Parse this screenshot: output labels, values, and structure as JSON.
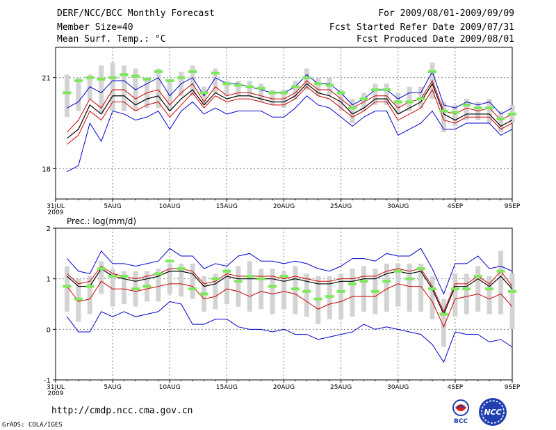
{
  "header": {
    "title": "DERF/NCC/BCC Monthly Forecast",
    "member_size": "Member Size=40",
    "variable": "Mean Surf. Temp.: °C",
    "period": "For 2009/08/01-2009/09/09",
    "fcst_started": "Fcst Started Refer Date 2009/07/31",
    "fcst_produced": "Fcst Produced Date 2009/08/01"
  },
  "footer": {
    "url": "http://cmdp.ncc.cma.gov.cn",
    "credit": "GrADS: COLA/IGES",
    "logo_left_text": "BCC",
    "logo_right_text": "NCC"
  },
  "colors": {
    "box": "#d3d3d3",
    "obs": "#7de85a",
    "envelope": "#0000cd",
    "spread": "#cc0000",
    "mean": "#000000",
    "grid": "#808080"
  },
  "chart_data": [
    {
      "type": "line",
      "title": "Mean Surf. Temp.: °C",
      "xlabel": "",
      "ylabel": "",
      "xlim": [
        0,
        40
      ],
      "ylim": [
        17.0,
        22.0
      ],
      "x_tick_positions": [
        0,
        5,
        10,
        15,
        20,
        25,
        30,
        35,
        40
      ],
      "x_tick_labels": [
        "31JUL",
        "5AUG",
        "10AUG",
        "15AUG",
        "20AUG",
        "25AUG",
        "30AUG",
        "4SEP",
        "9SEP"
      ],
      "x_sub_label": "2009",
      "y_tick_values": [
        18,
        21
      ],
      "y_tick_labels": [
        "18",
        "21"
      ],
      "grid": true,
      "x": [
        1,
        2,
        3,
        4,
        5,
        6,
        7,
        8,
        9,
        10,
        11,
        12,
        13,
        14,
        15,
        16,
        17,
        18,
        19,
        20,
        21,
        22,
        23,
        24,
        25,
        26,
        27,
        28,
        29,
        30,
        31,
        32,
        33,
        34,
        35,
        36,
        37,
        38,
        39,
        40
      ],
      "series": [
        {
          "name": "max",
          "values": [
            20.0,
            20.2,
            20.7,
            20.5,
            20.9,
            20.9,
            20.6,
            20.8,
            21.0,
            20.4,
            20.8,
            21.0,
            20.4,
            21.0,
            20.8,
            20.8,
            20.7,
            20.6,
            20.5,
            20.5,
            20.7,
            21.1,
            20.8,
            20.8,
            20.5,
            20.1,
            20.3,
            20.6,
            20.6,
            20.3,
            20.5,
            20.5,
            21.2,
            20.1,
            20.0,
            20.2,
            20.1,
            20.2,
            19.8,
            20.0
          ]
        },
        {
          "name": "upper",
          "values": [
            19.2,
            19.6,
            20.3,
            20.0,
            20.6,
            20.6,
            20.3,
            20.5,
            20.6,
            20.1,
            20.5,
            20.8,
            20.2,
            20.7,
            20.4,
            20.5,
            20.5,
            20.4,
            20.3,
            20.3,
            20.5,
            20.9,
            20.6,
            20.6,
            20.3,
            20.0,
            20.2,
            20.4,
            20.4,
            20.0,
            20.2,
            20.3,
            20.9,
            19.9,
            19.8,
            20.0,
            19.9,
            20.0,
            19.6,
            19.8
          ]
        },
        {
          "name": "mean",
          "values": [
            19.0,
            19.3,
            20.1,
            19.8,
            20.4,
            20.4,
            20.1,
            20.3,
            20.4,
            19.9,
            20.3,
            20.6,
            20.1,
            20.5,
            20.3,
            20.4,
            20.4,
            20.3,
            20.2,
            20.2,
            20.4,
            20.8,
            20.5,
            20.4,
            20.2,
            19.8,
            20.0,
            20.3,
            20.3,
            19.8,
            20.0,
            20.2,
            20.8,
            19.8,
            19.6,
            19.8,
            19.8,
            19.8,
            19.4,
            19.6
          ]
        },
        {
          "name": "lower",
          "values": [
            18.8,
            19.1,
            19.9,
            19.6,
            20.2,
            20.2,
            19.9,
            20.1,
            20.2,
            19.7,
            20.1,
            20.5,
            20.0,
            20.4,
            20.2,
            20.3,
            20.3,
            20.2,
            20.1,
            20.1,
            20.3,
            20.7,
            20.4,
            20.3,
            20.0,
            19.7,
            19.9,
            20.2,
            20.2,
            19.6,
            19.8,
            20.0,
            20.6,
            19.6,
            19.5,
            19.7,
            19.7,
            19.7,
            19.3,
            19.5
          ]
        },
        {
          "name": "min",
          "values": [
            17.9,
            18.1,
            19.5,
            18.9,
            19.9,
            19.8,
            19.6,
            19.7,
            19.9,
            19.3,
            19.9,
            20.2,
            19.8,
            20.0,
            19.8,
            19.9,
            19.9,
            19.9,
            19.7,
            19.7,
            20.0,
            20.4,
            20.1,
            20.0,
            19.7,
            19.4,
            19.7,
            19.9,
            19.9,
            19.1,
            19.3,
            19.5,
            19.9,
            19.3,
            19.3,
            19.5,
            19.5,
            19.5,
            19.1,
            19.3
          ]
        },
        {
          "name": "box_high",
          "values": [
            21.1,
            21.0,
            21.1,
            21.4,
            21.5,
            21.4,
            21.3,
            21.0,
            21.3,
            20.9,
            21.2,
            21.4,
            20.7,
            21.3,
            20.9,
            20.9,
            20.9,
            20.8,
            20.6,
            20.6,
            20.9,
            21.3,
            21.0,
            21.0,
            20.6,
            20.3,
            20.5,
            20.8,
            20.8,
            20.5,
            20.7,
            20.7,
            21.5,
            20.2,
            20.1,
            20.3,
            20.2,
            20.3,
            19.9,
            20.1
          ]
        },
        {
          "name": "box_low",
          "values": [
            19.7,
            19.9,
            20.3,
            19.8,
            19.9,
            19.9,
            19.9,
            20.0,
            20.0,
            19.9,
            20.4,
            20.4,
            20.1,
            20.5,
            20.4,
            20.4,
            20.4,
            20.2,
            20.1,
            20.0,
            20.3,
            20.6,
            20.4,
            20.4,
            19.9,
            19.5,
            19.9,
            20.1,
            20.1,
            19.8,
            19.9,
            20.0,
            20.3,
            19.2,
            19.4,
            19.6,
            19.6,
            19.5,
            19.2,
            19.5
          ]
        },
        {
          "name": "observation",
          "values": [
            20.5,
            20.9,
            21.0,
            20.95,
            21.0,
            21.1,
            21.05,
            20.95,
            21.2,
            20.9,
            21.0,
            21.2,
            20.5,
            21.15,
            20.8,
            20.75,
            20.7,
            20.65,
            20.5,
            20.5,
            20.7,
            21.0,
            20.8,
            20.75,
            20.5,
            20.0,
            20.3,
            20.6,
            20.6,
            20.2,
            20.2,
            20.3,
            21.2,
            19.9,
            19.85,
            20.1,
            20.0,
            20.0,
            19.65,
            19.8
          ]
        }
      ]
    },
    {
      "type": "line",
      "title": "Prec.: log(mm/d)",
      "xlabel": "",
      "ylabel": "",
      "xlim": [
        0,
        40
      ],
      "ylim": [
        -1,
        2
      ],
      "x_tick_positions": [
        0,
        5,
        10,
        15,
        20,
        25,
        30,
        35,
        40
      ],
      "x_tick_labels": [
        "31JUL",
        "5AUG",
        "10AUG",
        "15AUG",
        "20AUG",
        "25AUG",
        "30AUG",
        "4SEP",
        "9SEP"
      ],
      "x_sub_label": "2009",
      "y_tick_values": [
        -1,
        0,
        1,
        2
      ],
      "y_tick_labels": [
        "-1",
        "0",
        "1",
        "2"
      ],
      "grid": true,
      "x": [
        1,
        2,
        3,
        4,
        5,
        6,
        7,
        8,
        9,
        10,
        11,
        12,
        13,
        14,
        15,
        16,
        17,
        18,
        19,
        20,
        21,
        22,
        23,
        24,
        25,
        26,
        27,
        28,
        29,
        30,
        31,
        32,
        33,
        34,
        35,
        36,
        37,
        38,
        39,
        40
      ],
      "series": [
        {
          "name": "max",
          "values": [
            1.4,
            1.15,
            1.1,
            1.55,
            1.3,
            1.3,
            1.25,
            1.3,
            1.35,
            1.6,
            1.45,
            1.45,
            1.2,
            1.3,
            1.25,
            1.45,
            1.5,
            1.35,
            1.35,
            1.3,
            1.35,
            1.3,
            1.2,
            1.15,
            1.25,
            1.4,
            1.4,
            1.35,
            1.5,
            1.45,
            1.45,
            1.6,
            1.2,
            0.7,
            1.3,
            1.3,
            1.45,
            1.2,
            1.25,
            1.15
          ]
        },
        {
          "name": "upper",
          "values": [
            1.1,
            0.9,
            0.95,
            1.25,
            1.1,
            1.05,
            1.0,
            1.05,
            1.1,
            1.2,
            1.2,
            1.15,
            0.9,
            0.95,
            1.1,
            1.05,
            1.05,
            1.05,
            1.05,
            1.0,
            1.05,
            1.0,
            0.95,
            0.95,
            1.0,
            1.0,
            1.05,
            1.05,
            1.15,
            1.2,
            1.15,
            1.2,
            0.85,
            0.35,
            0.9,
            0.9,
            1.05,
            0.9,
            1.15,
            0.85
          ]
        },
        {
          "name": "mean",
          "values": [
            1.05,
            0.85,
            0.85,
            1.2,
            1.05,
            1.0,
            0.95,
            1.0,
            1.05,
            1.15,
            1.15,
            1.1,
            0.85,
            0.9,
            1.05,
            1.0,
            1.0,
            1.0,
            1.0,
            0.95,
            1.0,
            0.95,
            0.9,
            0.9,
            0.95,
            0.95,
            1.0,
            1.0,
            1.1,
            1.15,
            1.1,
            1.15,
            0.8,
            0.3,
            0.85,
            0.85,
            1.0,
            0.85,
            1.05,
            0.8
          ]
        },
        {
          "name": "lower",
          "values": [
            0.85,
            0.55,
            0.6,
            0.95,
            0.8,
            0.8,
            0.75,
            0.8,
            0.85,
            0.9,
            0.9,
            0.85,
            0.6,
            0.65,
            0.8,
            0.75,
            0.65,
            0.75,
            0.7,
            0.75,
            0.7,
            0.55,
            0.4,
            0.5,
            0.55,
            0.65,
            0.65,
            0.65,
            0.8,
            0.9,
            0.85,
            0.85,
            0.55,
            0.05,
            0.6,
            0.65,
            0.7,
            0.6,
            0.7,
            0.45
          ]
        },
        {
          "name": "min",
          "values": [
            0.25,
            -0.05,
            -0.05,
            0.35,
            0.25,
            0.35,
            0.25,
            0.3,
            0.35,
            0.55,
            0.5,
            0.1,
            0.1,
            0.2,
            0.2,
            0.05,
            0.0,
            0.0,
            -0.05,
            0.0,
            -0.1,
            -0.1,
            -0.2,
            -0.15,
            -0.1,
            -0.05,
            0.1,
            0.0,
            0.05,
            0.0,
            -0.05,
            -0.1,
            -0.3,
            -0.65,
            -0.05,
            -0.1,
            -0.1,
            -0.25,
            -0.2,
            -0.35
          ]
        },
        {
          "name": "box_high",
          "values": [
            1.25,
            1.0,
            1.05,
            1.35,
            1.2,
            1.15,
            1.15,
            1.15,
            1.2,
            1.3,
            1.3,
            1.3,
            1.05,
            1.1,
            1.2,
            1.25,
            1.35,
            1.2,
            1.2,
            1.15,
            1.25,
            1.1,
            1.05,
            1.05,
            1.1,
            1.2,
            1.25,
            1.2,
            1.3,
            1.3,
            1.3,
            1.3,
            1.05,
            0.6,
            1.1,
            1.1,
            1.25,
            1.05,
            1.55,
            1.1
          ]
        },
        {
          "name": "box_low",
          "values": [
            0.35,
            0.15,
            0.3,
            0.7,
            0.45,
            0.5,
            0.45,
            0.55,
            0.55,
            0.7,
            0.65,
            0.6,
            0.35,
            0.4,
            0.5,
            0.45,
            0.35,
            0.4,
            0.3,
            0.4,
            0.3,
            0.25,
            0.1,
            0.2,
            0.2,
            0.25,
            0.35,
            0.3,
            0.35,
            0.45,
            0.35,
            0.35,
            0.2,
            -0.35,
            0.25,
            0.3,
            0.35,
            0.3,
            0.3,
            0.0
          ]
        },
        {
          "name": "observation",
          "values": [
            0.85,
            0.6,
            0.85,
            1.2,
            1.05,
            1.05,
            0.8,
            0.85,
            1.1,
            1.35,
            1.2,
            0.8,
            0.7,
            1.0,
            1.15,
            0.95,
            1.05,
            1.0,
            0.85,
            1.05,
            0.8,
            0.75,
            0.6,
            0.65,
            0.75,
            0.9,
            0.95,
            0.75,
            0.95,
            1.15,
            1.0,
            1.2,
            0.8,
            0.3,
            0.8,
            0.8,
            1.05,
            0.8,
            1.15,
            0.75
          ]
        }
      ]
    }
  ]
}
